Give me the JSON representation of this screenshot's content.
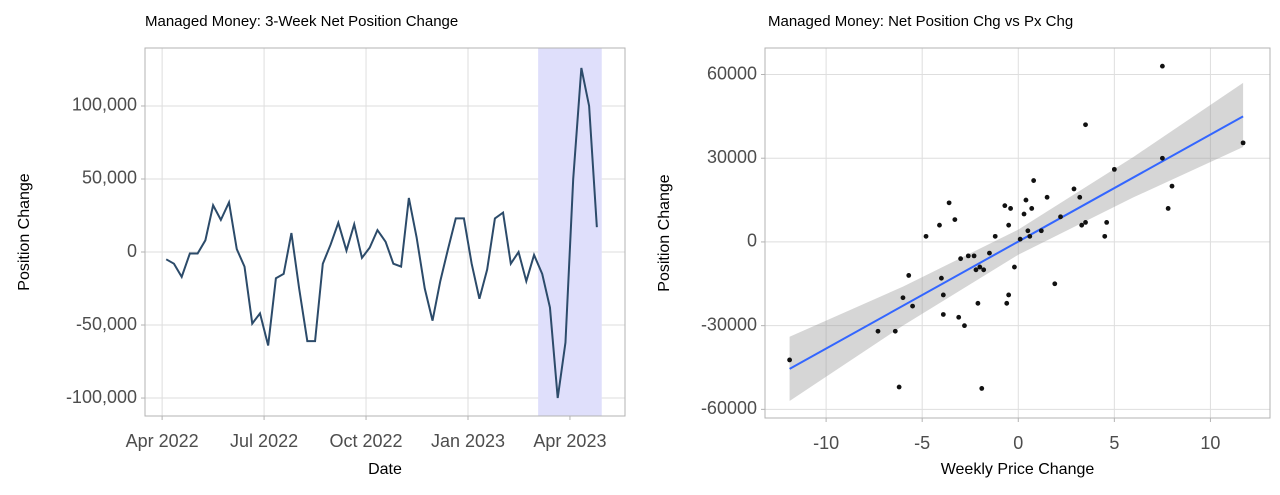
{
  "chart_data": [
    {
      "type": "line",
      "title": "Managed Money: 3-Week Net Position Change",
      "x_label": "Date",
      "y_label": "Position Change",
      "xlim": [
        2022.208,
        2023.385
      ],
      "xticks": [
        {
          "value": 2022.25,
          "label": "Apr 2022"
        },
        {
          "value": 2022.5,
          "label": "Jul 2022"
        },
        {
          "value": 2022.75,
          "label": "Oct 2022"
        },
        {
          "value": 2023.0,
          "label": "Jan 2023"
        },
        {
          "value": 2023.25,
          "label": "Apr 2023"
        }
      ],
      "ylim": [
        -112300,
        139700
      ],
      "yticks": [
        {
          "value": 100000,
          "label": "100,000"
        },
        {
          "value": 50000,
          "label": "50,000"
        },
        0,
        {
          "value": -50000,
          "label": "-50,000"
        },
        {
          "value": -100000,
          "label": "-100,000"
        }
      ],
      "grid": true,
      "highlight": [
        2023.172,
        2023.328
      ],
      "highlight_color": "#dfdffb",
      "color": "#2c4b6a",
      "x": [
        2022.26,
        2022.279,
        2022.298,
        2022.318,
        2022.337,
        2022.356,
        2022.375,
        2022.394,
        2022.414,
        2022.433,
        2022.452,
        2022.471,
        2022.49,
        2022.51,
        2022.529,
        2022.548,
        2022.567,
        2022.586,
        2022.606,
        2022.625,
        2022.644,
        2022.663,
        2022.682,
        2022.702,
        2022.721,
        2022.74,
        2022.759,
        2022.778,
        2022.798,
        2022.817,
        2022.836,
        2022.855,
        2022.874,
        2022.894,
        2022.913,
        2022.932,
        2022.951,
        2022.97,
        2022.99,
        2023.009,
        2023.028,
        2023.047,
        2023.066,
        2023.086,
        2023.105,
        2023.124,
        2023.143,
        2023.162,
        2023.182,
        2023.201,
        2023.22,
        2023.239,
        2023.258,
        2023.278,
        2023.297,
        2023.316
      ],
      "values": [
        -5000,
        -8000,
        -17000,
        -1000,
        -1000,
        8000,
        32000,
        22000,
        34000,
        2000,
        -10000,
        -49000,
        -42000,
        -64000,
        -18000,
        -15000,
        13000,
        -25000,
        -61000,
        -61000,
        -8000,
        5000,
        20000,
        1000,
        19000,
        -4000,
        3000,
        15000,
        7000,
        -8000,
        -10000,
        37000,
        10000,
        -25000,
        -47000,
        -20000,
        2000,
        23000,
        23000,
        -8000,
        -32000,
        -12000,
        23000,
        27000,
        -8000,
        0,
        -20000,
        -2000,
        -15000,
        -38000,
        -100000,
        -62000,
        50000,
        126000,
        100000,
        17000
      ]
    },
    {
      "type": "scatter",
      "title": "Managed Money: Net Position Chg vs Px Chg",
      "x_label": "Weekly Price Change",
      "y_label": "Position Change",
      "xlim": [
        -13.18,
        13.1
      ],
      "xticks": [
        -10,
        -5,
        0,
        5,
        10
      ],
      "ylim": [
        -63100,
        69500
      ],
      "yticks": [
        60000,
        30000,
        0,
        -30000,
        -60000
      ],
      "grid": true,
      "color": "#111111",
      "x": [
        -11.9,
        -7.3,
        -6.4,
        -6.2,
        -6.0,
        -5.7,
        -5.5,
        -4.8,
        -4.1,
        -4.0,
        -3.9,
        -3.9,
        -3.6,
        -3.3,
        -3.1,
        -3.0,
        -2.8,
        -2.6,
        -2.3,
        -2.2,
        -2.1,
        -2.0,
        -1.9,
        -1.8,
        -1.5,
        -1.2,
        -0.7,
        -0.6,
        -0.5,
        -0.5,
        -0.4,
        -0.2,
        0.1,
        0.3,
        0.4,
        0.5,
        0.6,
        0.7,
        0.8,
        1.2,
        1.5,
        1.9,
        2.2,
        2.9,
        3.2,
        3.3,
        3.5,
        3.5,
        4.5,
        4.6,
        5.0,
        7.5,
        7.5,
        7.8,
        8.0,
        11.7
      ],
      "values": [
        -42300,
        -32000,
        -32000,
        -52000,
        -20000,
        -12000,
        -23000,
        2000,
        6000,
        -13000,
        -19000,
        -26000,
        14000,
        8000,
        -27000,
        -6000,
        -30000,
        -5000,
        -5000,
        -10000,
        -22000,
        -9000,
        -52500,
        -10000,
        -4000,
        2000,
        13000,
        -22000,
        -19000,
        6000,
        12000,
        -9000,
        1000,
        10000,
        15000,
        4000,
        2000,
        12000,
        22000,
        4000,
        16000,
        -15000,
        9000,
        19000,
        16000,
        6000,
        7000,
        42000,
        2000,
        7000,
        26000,
        63000,
        30000,
        12000,
        20000,
        35500
      ],
      "fit": {
        "x": [
          -11.9,
          11.7
        ],
        "values": [
          -45500,
          45000
        ],
        "color": "#3366ff"
      },
      "band": {
        "x": [
          -11.9,
          -6,
          0,
          6,
          11.7
        ],
        "upper": [
          -34000,
          -16000,
          4400,
          30500,
          57000
        ],
        "lower": [
          -57000,
          -30000,
          -4600,
          16000,
          34000
        ],
        "color": "#999999"
      }
    }
  ]
}
